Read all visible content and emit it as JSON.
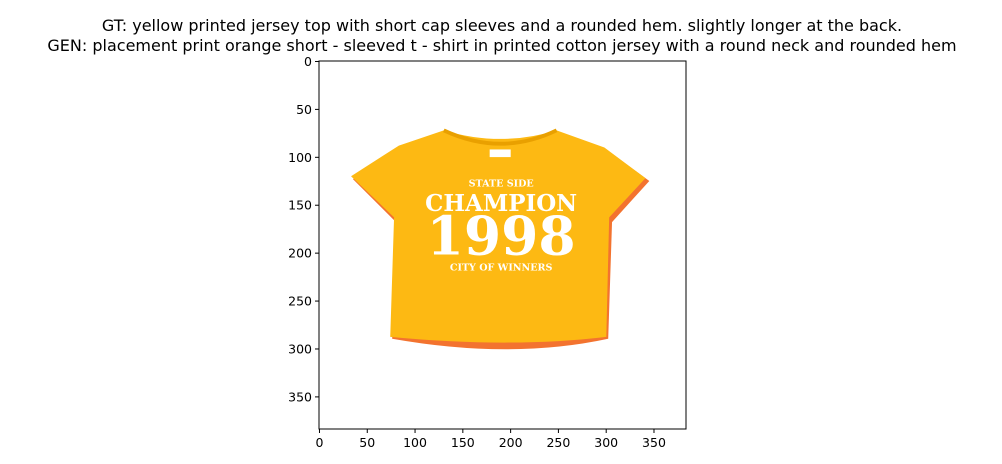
{
  "chart_data": {
    "type": "image",
    "title_lines": [
      "GT: yellow printed jersey top with short cap sleeves and a rounded hem. slightly longer at the back.",
      "GEN: placement print orange short - sleeved t - shirt in printed cotton jersey with a round neck and rounded hem"
    ],
    "image_text": [
      "STATE SIDE",
      "CHAMPION",
      "1998",
      "CITY OF WINNERS"
    ],
    "xlim": [
      -0.5,
      383.5
    ],
    "ylim": [
      383.5,
      -0.5
    ],
    "xticks": [
      0,
      50,
      100,
      150,
      200,
      250,
      300,
      350
    ],
    "yticks": [
      0,
      50,
      100,
      150,
      200,
      250,
      300,
      350
    ]
  }
}
